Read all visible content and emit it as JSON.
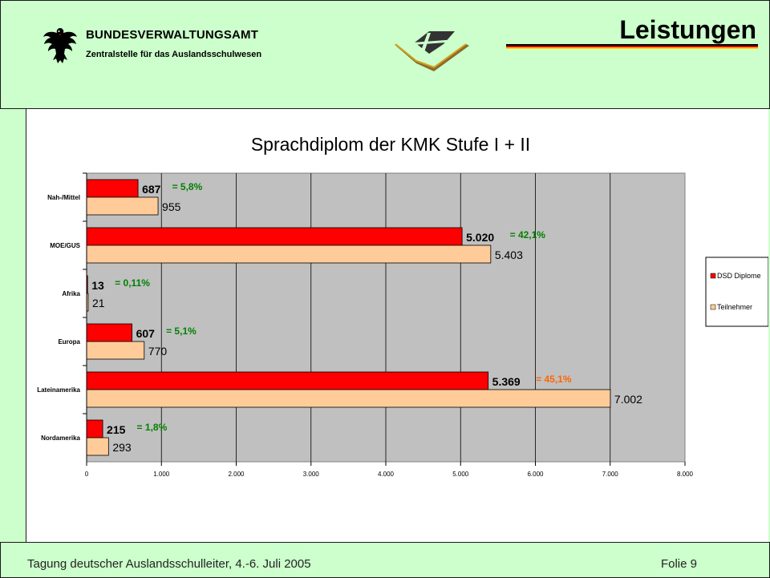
{
  "header": {
    "agency": "BUNDESVERWALTUNGSAMT",
    "subagency": "Zentralstelle für das Auslandsschulwesen",
    "slide_title": "Leistungen"
  },
  "footer": {
    "event": "Tagung deutscher Auslandsschulleiter, 4.-6. Juli 2005",
    "page": "Folie 9"
  },
  "colors": {
    "background": "#ccffcc",
    "plot_area": "#c0c0c0",
    "series_diplome": "#ff0000",
    "series_teilnehmer": "#ffcc99",
    "percent_green": "#008000",
    "percent_orange": "#ff6600"
  },
  "chart_data": {
    "type": "bar",
    "orientation": "horizontal",
    "title": "Sprachdiplom der KMK Stufe I + II",
    "categories": [
      "Nah-/Mittel",
      "MOE/GUS",
      "Afrika",
      "Europa",
      "Lateinamerika",
      "Nordamerika"
    ],
    "series": [
      {
        "name": "DSD Diplome",
        "values": [
          687,
          5020,
          13,
          607,
          5369,
          215
        ],
        "labels": [
          "687",
          "5.020",
          "13",
          "607",
          "5.369",
          "215"
        ]
      },
      {
        "name": "Teilnehmer",
        "values": [
          955,
          5403,
          21,
          770,
          7002,
          293
        ],
        "labels": [
          "955",
          "5.403",
          "21",
          "770",
          "7.002",
          "293"
        ]
      }
    ],
    "annotations": [
      "= 5,8%",
      "= 42,1%",
      "= 0,11%",
      "= 5,1%",
      "= 45,1%",
      "= 1,8%"
    ],
    "xlim": [
      0,
      8000
    ],
    "xticks": [
      "0",
      "1.000",
      "2.000",
      "3.000",
      "4.000",
      "5.000",
      "6.000",
      "7.000",
      "8.000"
    ],
    "grid": true,
    "legend_position": "right"
  }
}
